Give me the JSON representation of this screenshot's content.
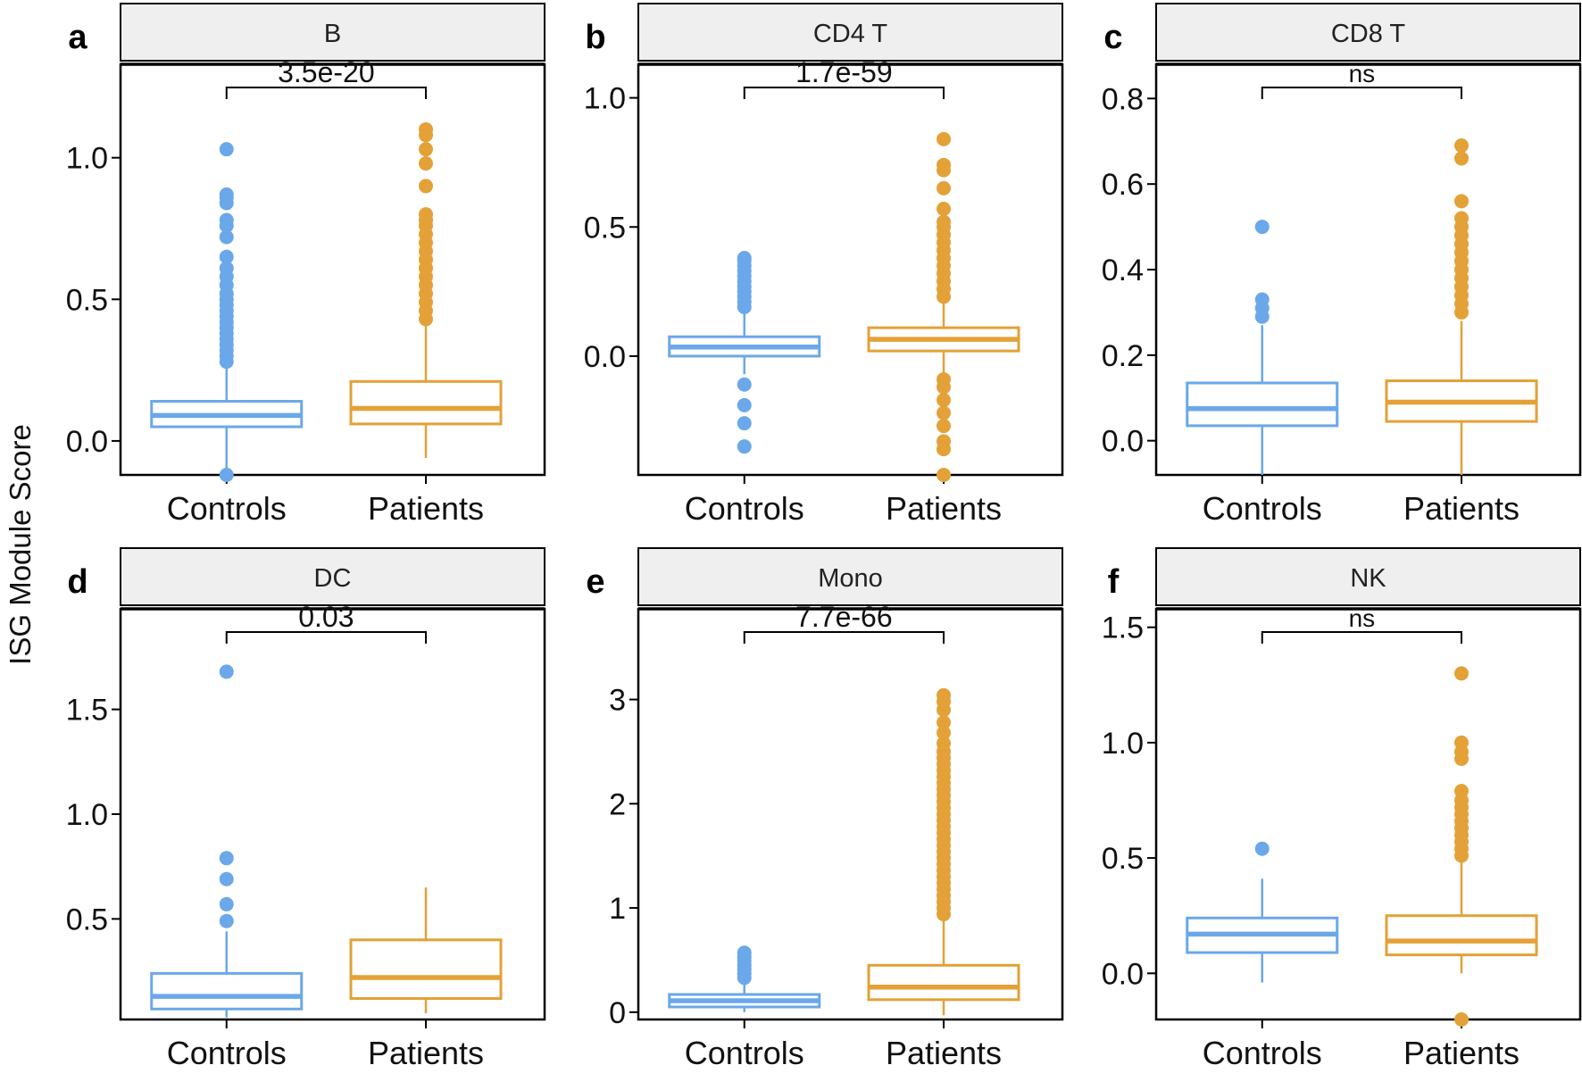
{
  "figure": {
    "ylabel": "ISG Module Score",
    "colors": {
      "controls": "#6aa8ea",
      "patients": "#e3a137",
      "strip_fill": "#efefef",
      "frame": "#000000"
    }
  },
  "chart_data": [
    {
      "type": "box",
      "panel": "a",
      "title": "B",
      "categories": [
        "Controls",
        "Patients"
      ],
      "ylim": [
        -0.12,
        1.33
      ],
      "yticks": [
        0.0,
        0.5,
        1.0
      ],
      "ytick_labels": [
        "0.0",
        "0.5",
        "1.0"
      ],
      "pvalue": "3.5e-20",
      "boxes": [
        {
          "name": "Controls",
          "whisker_low": -0.12,
          "q1": 0.05,
          "median": 0.09,
          "q3": 0.14,
          "whisker_high": 0.27,
          "outliers": [
            -0.12,
            0.28,
            0.3,
            0.32,
            0.34,
            0.36,
            0.38,
            0.4,
            0.42,
            0.44,
            0.46,
            0.48,
            0.5,
            0.52,
            0.55,
            0.58,
            0.61,
            0.65,
            0.72,
            0.76,
            0.78,
            0.84,
            0.86,
            0.87,
            1.03
          ]
        },
        {
          "name": "Patients",
          "whisker_low": -0.06,
          "q1": 0.06,
          "median": 0.115,
          "q3": 0.21,
          "whisker_high": 0.42,
          "outliers": [
            0.43,
            0.46,
            0.49,
            0.52,
            0.55,
            0.58,
            0.61,
            0.64,
            0.67,
            0.7,
            0.73,
            0.76,
            0.78,
            0.8,
            0.9,
            0.98,
            1.03,
            1.08,
            1.1
          ]
        }
      ]
    },
    {
      "type": "box",
      "panel": "b",
      "title": "CD4 T",
      "categories": [
        "Controls",
        "Patients"
      ],
      "ylim": [
        -0.46,
        1.13
      ],
      "yticks": [
        0.0,
        0.5,
        1.0
      ],
      "ytick_labels": [
        "0.0",
        "0.5",
        "1.0"
      ],
      "pvalue": "1.7e-59",
      "boxes": [
        {
          "name": "Controls",
          "whisker_low": -0.07,
          "q1": 0.0,
          "median": 0.035,
          "q3": 0.075,
          "whisker_high": 0.18,
          "outliers": [
            -0.35,
            -0.26,
            -0.19,
            -0.11,
            0.19,
            0.21,
            0.23,
            0.25,
            0.27,
            0.29,
            0.31,
            0.33,
            0.35,
            0.37,
            0.38
          ]
        },
        {
          "name": "Patients",
          "whisker_low": -0.08,
          "q1": 0.02,
          "median": 0.065,
          "q3": 0.11,
          "whisker_high": 0.22,
          "outliers": [
            -0.46,
            -0.36,
            -0.33,
            -0.27,
            -0.22,
            -0.17,
            -0.12,
            -0.09,
            0.23,
            0.26,
            0.29,
            0.32,
            0.35,
            0.38,
            0.41,
            0.44,
            0.47,
            0.5,
            0.52,
            0.57,
            0.65,
            0.72,
            0.74,
            0.84
          ]
        }
      ]
    },
    {
      "type": "box",
      "panel": "c",
      "title": "CD8 T",
      "categories": [
        "Controls",
        "Patients"
      ],
      "ylim": [
        -0.08,
        0.88
      ],
      "yticks": [
        0.0,
        0.2,
        0.4,
        0.6,
        0.8
      ],
      "ytick_labels": [
        "0.0",
        "0.2",
        "0.4",
        "0.6",
        "0.8"
      ],
      "pvalue": "ns",
      "boxes": [
        {
          "name": "Controls",
          "whisker_low": -0.08,
          "q1": 0.035,
          "median": 0.075,
          "q3": 0.135,
          "whisker_high": 0.27,
          "outliers": [
            0.29,
            0.31,
            0.33,
            0.5
          ]
        },
        {
          "name": "Patients",
          "whisker_low": -0.08,
          "q1": 0.045,
          "median": 0.09,
          "q3": 0.14,
          "whisker_high": 0.28,
          "outliers": [
            0.3,
            0.32,
            0.34,
            0.36,
            0.38,
            0.4,
            0.42,
            0.44,
            0.46,
            0.48,
            0.5,
            0.52,
            0.56,
            0.66,
            0.69
          ]
        }
      ]
    },
    {
      "type": "box",
      "panel": "d",
      "title": "DC",
      "categories": [
        "Controls",
        "Patients"
      ],
      "ylim": [
        0.02,
        1.98
      ],
      "yticks": [
        0.5,
        1.0,
        1.5
      ],
      "ytick_labels": [
        "0.5",
        "1.0",
        "1.5"
      ],
      "pvalue": "0.03",
      "boxes": [
        {
          "name": "Controls",
          "whisker_low": 0.03,
          "q1": 0.07,
          "median": 0.13,
          "q3": 0.24,
          "whisker_high": 0.44,
          "outliers": [
            0.49,
            0.57,
            0.69,
            0.79,
            1.68
          ]
        },
        {
          "name": "Patients",
          "whisker_low": 0.05,
          "q1": 0.12,
          "median": 0.22,
          "q3": 0.4,
          "whisker_high": 0.65,
          "outliers": []
        }
      ]
    },
    {
      "type": "box",
      "panel": "e",
      "title": "Mono",
      "categories": [
        "Controls",
        "Patients"
      ],
      "ylim": [
        -0.07,
        3.87
      ],
      "yticks": [
        0,
        1,
        2,
        3
      ],
      "ytick_labels": [
        "0",
        "1",
        "2",
        "3"
      ],
      "pvalue": "7.7e-66",
      "boxes": [
        {
          "name": "Controls",
          "whisker_low": 0.0,
          "q1": 0.05,
          "median": 0.11,
          "q3": 0.17,
          "whisker_high": 0.3,
          "outliers": [
            0.33,
            0.37,
            0.41,
            0.45,
            0.49,
            0.53,
            0.57
          ]
        },
        {
          "name": "Patients",
          "whisker_low": -0.03,
          "q1": 0.12,
          "median": 0.24,
          "q3": 0.45,
          "whisker_high": 0.9,
          "outliers": [
            0.94,
            1.0,
            1.06,
            1.12,
            1.18,
            1.24,
            1.3,
            1.36,
            1.42,
            1.48,
            1.54,
            1.6,
            1.66,
            1.72,
            1.78,
            1.84,
            1.9,
            1.96,
            2.02,
            2.08,
            2.14,
            2.2,
            2.26,
            2.32,
            2.38,
            2.44,
            2.5,
            2.58,
            2.68,
            2.78,
            2.9,
            2.98,
            3.04
          ]
        }
      ]
    },
    {
      "type": "box",
      "panel": "f",
      "title": "NK",
      "categories": [
        "Controls",
        "Patients"
      ],
      "ylim": [
        -0.2,
        1.58
      ],
      "yticks": [
        0.0,
        0.5,
        1.0,
        1.5
      ],
      "ytick_labels": [
        "0.0",
        "0.5",
        "1.0",
        "1.5"
      ],
      "pvalue": "ns",
      "boxes": [
        {
          "name": "Controls",
          "whisker_low": -0.04,
          "q1": 0.09,
          "median": 0.17,
          "q3": 0.24,
          "whisker_high": 0.41,
          "outliers": [
            0.54
          ]
        },
        {
          "name": "Patients",
          "whisker_low": 0.0,
          "q1": 0.08,
          "median": 0.14,
          "q3": 0.25,
          "whisker_high": 0.49,
          "outliers": [
            -0.2,
            0.51,
            0.54,
            0.57,
            0.6,
            0.63,
            0.66,
            0.69,
            0.72,
            0.75,
            0.79,
            0.93,
            0.96,
            1.0,
            1.3
          ]
        }
      ]
    }
  ]
}
